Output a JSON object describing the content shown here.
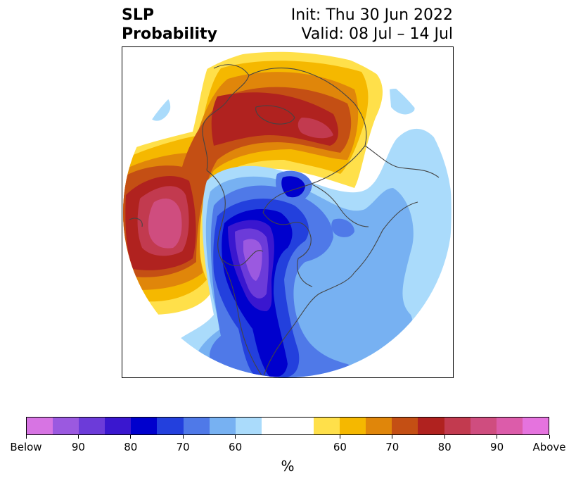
{
  "title": {
    "left_line1": "SLP",
    "left_line2": "Probability",
    "right_line1": "Init: Thu 30 Jun 2022",
    "right_line2": "Valid: 08 Jul – 14 Jul"
  },
  "colorbar": {
    "below_colors": [
      "#d774e3",
      "#9b59e0",
      "#6c3bd9",
      "#3a17cf",
      "#0000cd",
      "#2340dd",
      "#4f79e8",
      "#77b1f2",
      "#aadbfb"
    ],
    "neutral_color": "#ffffff",
    "above_colors": [
      "#ffe04a",
      "#f5b800",
      "#e0860a",
      "#c44f14",
      "#b0221f",
      "#c23a4f",
      "#cf4d7f",
      "#dc5caa",
      "#e573de"
    ],
    "tick_labels": [
      "Below",
      "90",
      "80",
      "70",
      "60",
      "60",
      "70",
      "80",
      "90",
      "Above"
    ],
    "unit": "%"
  },
  "map": {
    "projection": "north-polar-stereographic",
    "colors": {
      "above_outer": "#ffe04a",
      "above_60": "#f5b800",
      "above_65": "#e0860a",
      "above_70": "#c44f14",
      "above_75": "#b0221f",
      "above_80": "#c23a4f",
      "above_85": "#cf4d7f",
      "below_outer": "#aadbfb",
      "below_55": "#77b1f2",
      "below_60": "#4f79e8",
      "below_65": "#2340dd",
      "below_70": "#0000cd",
      "below_75": "#3a17cf",
      "below_80": "#6c3bd9",
      "below_85": "#9b59e0",
      "coast": "#444444"
    }
  }
}
